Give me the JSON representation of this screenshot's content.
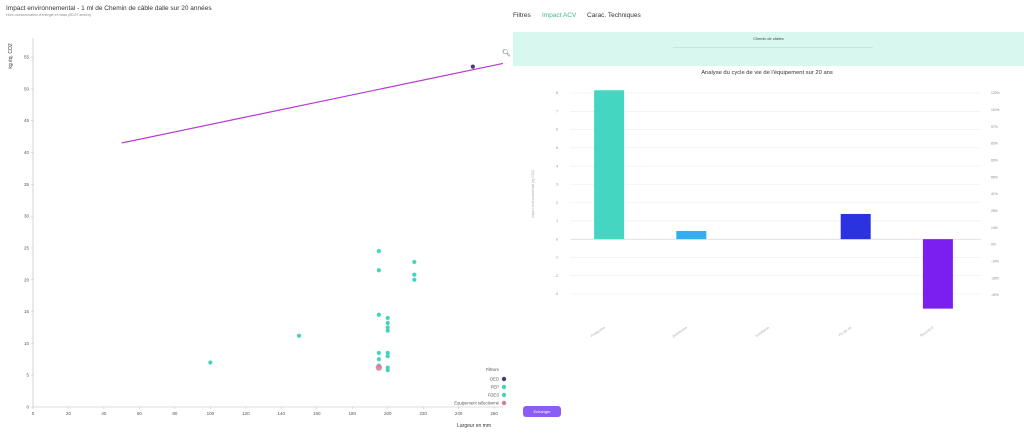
{
  "left_panel": {
    "title": "Impact environnemental - 1 ml de Chemin de câble dalle sur 20 années",
    "subtitle": "Hors consommation d'énergie et mass (80.87 ans/co)",
    "zoom_icon": "zoom-icon"
  },
  "tabs": [
    {
      "label": "Filtres",
      "active": false
    },
    {
      "label": "Impact ACV",
      "active": true
    },
    {
      "label": "Carac. Techniques",
      "active": false
    }
  ],
  "banner": {
    "label": "Chemin de câbles"
  },
  "exchange_button": {
    "label": "Echanger"
  },
  "colors": {
    "accent": "#3fb98f",
    "banner_bg": "#d8f7ee",
    "button": "#8b5cf6"
  },
  "chart_data": [
    {
      "type": "scatter",
      "title": "",
      "xlabel": "Largeur en mm",
      "ylabel": "kg éq. CO2",
      "xlim": [
        0,
        265
      ],
      "ylim": [
        0,
        58
      ],
      "xticks": [
        0,
        20,
        40,
        60,
        80,
        100,
        120,
        140,
        160,
        180,
        200,
        220,
        240,
        260
      ],
      "yticks": [
        0,
        5,
        10,
        15,
        20,
        25,
        30,
        35,
        40,
        45,
        50,
        55
      ],
      "trendline": {
        "x": [
          50,
          265
        ],
        "y": [
          41.5,
          54
        ]
      },
      "legend": {
        "title": "Filtrure",
        "placement": "bottom-right",
        "items": [
          {
            "label": "DED",
            "color": "#4b3a78"
          },
          {
            "label": "PEP",
            "color": "#45d3bf"
          },
          {
            "label": "FDES",
            "color": "#45d3bf"
          },
          {
            "label": "Equipement sélectionné",
            "color": "#d97a9b"
          }
        ]
      },
      "series": [
        {
          "name": "DED",
          "color": "#4b3a78",
          "points": [
            [
              248,
              53.5
            ]
          ]
        },
        {
          "name": "PEP",
          "color": "#45d3bf",
          "points": [
            [
              100,
              7
            ],
            [
              150,
              11.2
            ],
            [
              195,
              24.5
            ],
            [
              195,
              21.5
            ],
            [
              195,
              14.5
            ],
            [
              195,
              8.5
            ],
            [
              195,
              7.5
            ],
            [
              195,
              6.5
            ],
            [
              200,
              14
            ],
            [
              200,
              13.2
            ],
            [
              200,
              12.5
            ],
            [
              200,
              12
            ],
            [
              200,
              8.5
            ],
            [
              200,
              8
            ],
            [
              200,
              6.2
            ],
            [
              200,
              5.8
            ],
            [
              215,
              22.8
            ],
            [
              215,
              20.8
            ],
            [
              215,
              20
            ]
          ]
        },
        {
          "name": "Equipement sélectionné",
          "color": "#d97a9b",
          "points": [
            [
              195,
              6.2
            ]
          ]
        }
      ]
    },
    {
      "type": "bar",
      "title": "Analyse du cycle de vie de l'équipement sur 20 ans",
      "ylabel": "Impact environnemental (kg CO2)",
      "categories": [
        "Production",
        "Distribution",
        "Installation",
        "Fin de vie",
        "Recyclé D"
      ],
      "values": [
        8.15,
        0.45,
        0,
        1.38,
        -3.8
      ],
      "colors": [
        "#45d6c2",
        "#33aef0",
        "#cccccc",
        "#2b32e0",
        "#7b1ff0"
      ],
      "ylim": [
        -3.5,
        8
      ],
      "yticks": [
        8,
        7,
        6,
        5,
        4,
        3,
        2,
        1,
        0,
        -1,
        -2,
        -3
      ],
      "y2ticks": [
        "120%",
        "110%",
        "97%",
        "83%",
        "69%",
        "55%",
        "41%",
        "28%",
        "14%",
        "0%",
        "-14%",
        "-28%",
        "-40%"
      ]
    }
  ]
}
